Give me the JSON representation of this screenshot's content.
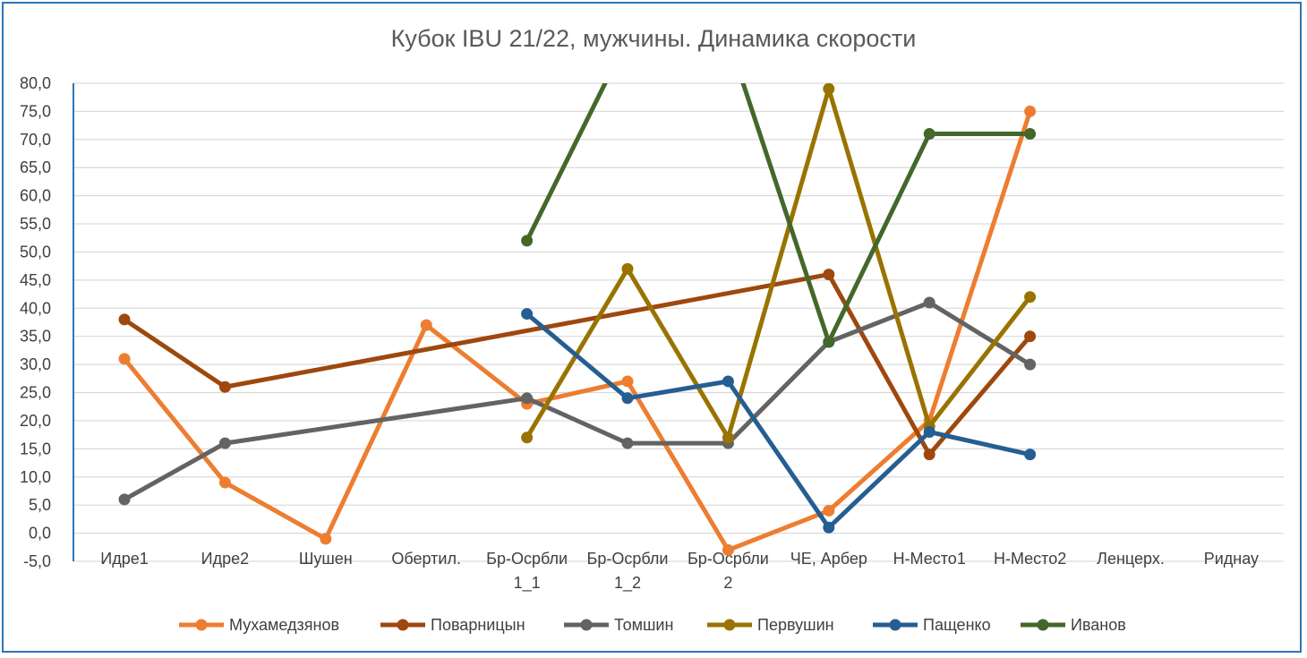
{
  "chart_data": {
    "type": "line",
    "title": "Кубок IBU 21/22, мужчины. Динамика скорости",
    "categories": [
      [
        "Идре1"
      ],
      [
        "Идре2"
      ],
      [
        "Шушен"
      ],
      [
        "Обертил."
      ],
      [
        "Бр-Осрбли",
        "1_1"
      ],
      [
        "Бр-Осрбли",
        "1_2"
      ],
      [
        "Бр-Осрбли",
        "2"
      ],
      [
        "ЧЕ, Арбер"
      ],
      [
        "Н-Место1"
      ],
      [
        "Н-Место2"
      ],
      [
        "Ленцерх."
      ],
      [
        "Риднау"
      ]
    ],
    "ylim": [
      -5,
      80
    ],
    "yticks": [
      "-5,0",
      "0,0",
      "5,0",
      "10,0",
      "15,0",
      "20,0",
      "25,0",
      "30,0",
      "35,0",
      "40,0",
      "45,0",
      "50,0",
      "55,0",
      "60,0",
      "65,0",
      "70,0",
      "75,0",
      "80,0"
    ],
    "negative_tick_color": "#ff0000",
    "grid": true,
    "legend": "bottom",
    "series": [
      {
        "name": "Мухамедзянов",
        "color": "#ed7d31",
        "values": [
          31,
          9,
          -1,
          37,
          23,
          27,
          -3,
          4,
          20,
          75,
          null,
          null
        ]
      },
      {
        "name": "Поварницын",
        "color": "#9e480e",
        "values": [
          38,
          26,
          null,
          null,
          null,
          null,
          null,
          46,
          14,
          35,
          null,
          null
        ]
      },
      {
        "name": "Томшин",
        "color": "#636363",
        "values": [
          6,
          16,
          null,
          null,
          24,
          16,
          16,
          34,
          41,
          30,
          null,
          null
        ]
      },
      {
        "name": "Первушин",
        "color": "#997300",
        "values": [
          null,
          null,
          null,
          null,
          17,
          47,
          17,
          79,
          19,
          42,
          null,
          null
        ]
      },
      {
        "name": "Пащенко",
        "color": "#255e91",
        "values": [
          null,
          null,
          null,
          null,
          39,
          24,
          27,
          1,
          18,
          14,
          null,
          null
        ]
      },
      {
        "name": "Иванов",
        "color": "#43682b",
        "values": [
          null,
          null,
          null,
          null,
          52,
          88,
          88,
          34,
          null,
          71,
          null,
          null
        ]
      }
    ],
    "ivanov_extra_point": {
      "category_index": 8,
      "value": 71
    }
  }
}
